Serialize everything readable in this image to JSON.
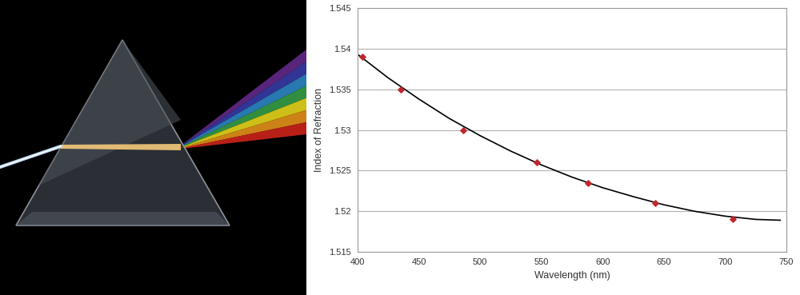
{
  "chart_data": {
    "type": "scatter",
    "xlabel": "Wavelength (nm)",
    "ylabel": "Index of Refraction",
    "series": [
      {
        "type": "line",
        "color": "#000000",
        "line_style": "solid",
        "x": [
          400,
          425,
          450,
          475,
          500,
          525,
          550,
          575,
          600,
          625,
          650,
          675,
          700,
          725,
          745
        ],
        "values": [
          1.5393,
          1.5364,
          1.5338,
          1.5314,
          1.5293,
          1.5274,
          1.5257,
          1.5242,
          1.5229,
          1.5218,
          1.5208,
          1.52,
          1.5194,
          1.519,
          1.5189
        ]
      },
      {
        "type": "scatter",
        "color": "#c0272d",
        "marker": "diamond",
        "x": [
          404,
          435,
          486,
          546,
          588,
          643,
          706
        ],
        "values": [
          1.539,
          1.535,
          1.53,
          1.526,
          1.5235,
          1.521,
          1.519
        ]
      }
    ],
    "xlim": [
      400,
      750
    ],
    "xticks": [
      400,
      450,
      500,
      550,
      600,
      650,
      700,
      750
    ],
    "ylim": [
      1.515,
      1.545
    ],
    "yticks": [
      1.515,
      1.52,
      1.525,
      1.53,
      1.535,
      1.54,
      1.545
    ],
    "grid": "y"
  }
}
